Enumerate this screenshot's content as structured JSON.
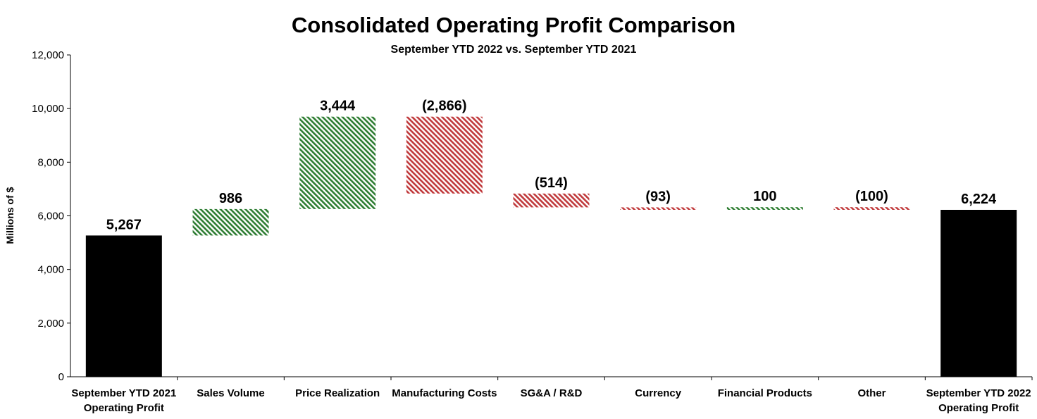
{
  "chart_data": {
    "type": "waterfall",
    "title": "Consolidated Operating Profit Comparison",
    "subtitle": "September YTD 2022 vs. September YTD 2021",
    "ylabel": "Millions of $",
    "xlabel": "",
    "ylim": [
      0,
      12000
    ],
    "yticks": [
      "0",
      "2,000",
      "4,000",
      "6,000",
      "8,000",
      "10,000",
      "12,000"
    ],
    "grid": false,
    "colors": {
      "total": "#000000",
      "increase": "#2e7d32",
      "decrease": "#c0393b"
    },
    "bars": [
      {
        "category": [
          "September YTD 2021",
          "Operating Profit"
        ],
        "value": 5267,
        "kind": "total",
        "label": "5,267"
      },
      {
        "category": [
          "Sales Volume"
        ],
        "value": 986,
        "kind": "delta",
        "label": "986"
      },
      {
        "category": [
          "Price Realization"
        ],
        "value": 3444,
        "kind": "delta",
        "label": "3,444"
      },
      {
        "category": [
          "Manufacturing Costs"
        ],
        "value": -2866,
        "kind": "delta",
        "label": "(2,866)"
      },
      {
        "category": [
          "SG&A / R&D"
        ],
        "value": -514,
        "kind": "delta",
        "label": "(514)"
      },
      {
        "category": [
          "Currency"
        ],
        "value": -93,
        "kind": "delta",
        "label": "(93)"
      },
      {
        "category": [
          "Financial  Products"
        ],
        "value": 100,
        "kind": "delta",
        "label": "100"
      },
      {
        "category": [
          "Other"
        ],
        "value": -100,
        "kind": "delta",
        "label": "(100)"
      },
      {
        "category": [
          "September YTD 2022",
          "Operating Profit"
        ],
        "value": 6224,
        "kind": "total",
        "label": "6,224"
      }
    ]
  }
}
